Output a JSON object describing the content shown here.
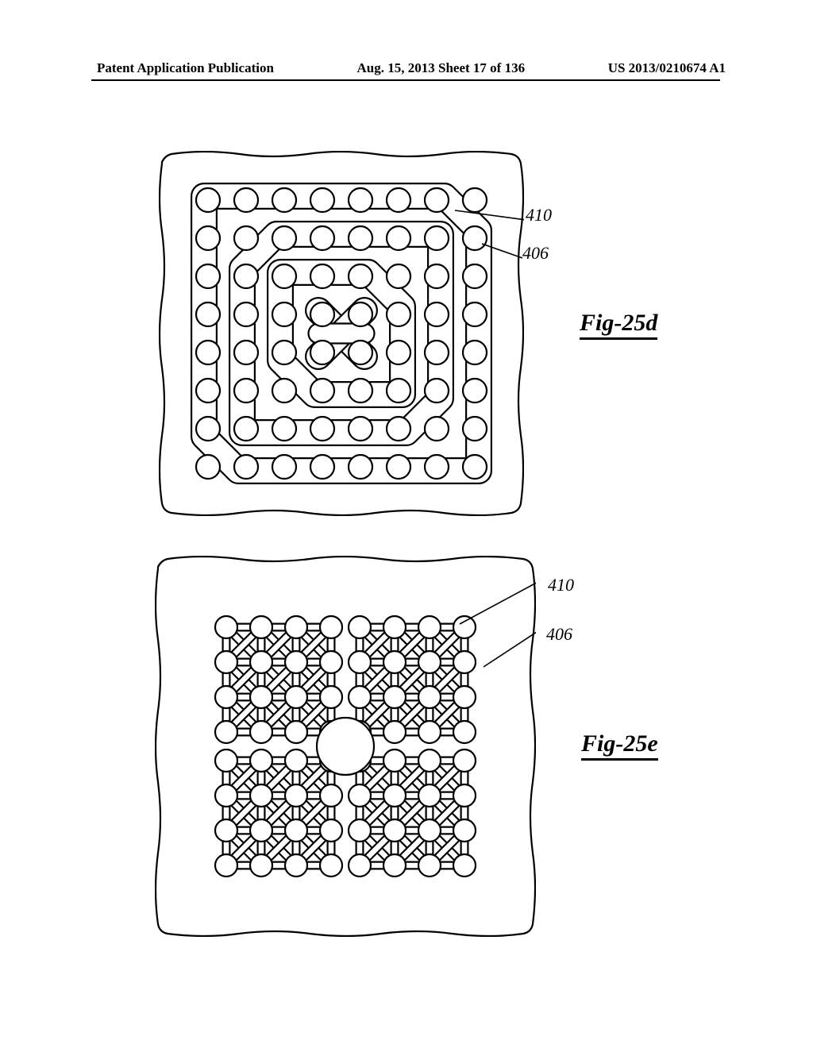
{
  "header": {
    "left": "Patent Application Publication",
    "center": "Aug. 15, 2013  Sheet 17 of 136",
    "right": "US 2013/0210674 A1"
  },
  "figure1": {
    "label": "Fig-25d",
    "refs": {
      "r410": "410",
      "r406": "406"
    },
    "stroke": "#000000",
    "strokeWidth": 2.2,
    "grid": {
      "n": 8,
      "cell": 48,
      "circleR": 15,
      "ox": 24,
      "oy": 24
    },
    "channels": {
      "width": 34,
      "rings": [
        {
          "inset": 0,
          "corners": "ne,sw"
        },
        {
          "inset": 48,
          "corners": "nw,se"
        },
        {
          "inset": 96,
          "corners": "ne,sw"
        }
      ],
      "centerX": true
    }
  },
  "figure2": {
    "label": "Fig-25e",
    "refs": {
      "r410": "410",
      "r406": "406"
    },
    "stroke": "#000000",
    "strokeWidth": 2.2,
    "quad": {
      "cols": 4,
      "rows": 4,
      "cell": 44,
      "r": 14
    },
    "gap": 36,
    "centerR": 36
  },
  "style": {
    "background": "#ffffff",
    "lineColor": "#000000",
    "headerFontSize": 17,
    "labelFontSize": 30,
    "refFontSize": 22
  }
}
